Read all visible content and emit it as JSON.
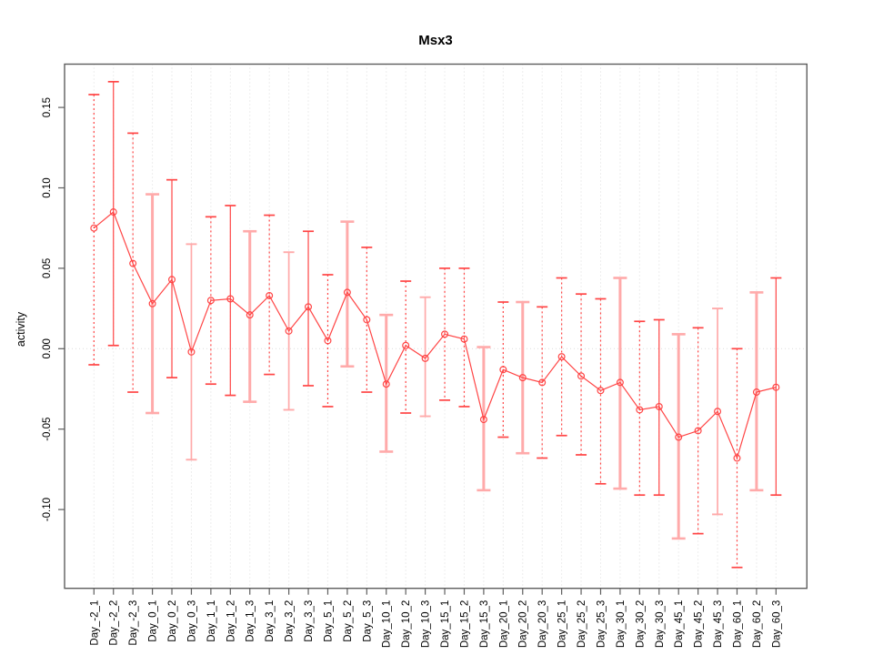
{
  "figure": {
    "title": "Msx3",
    "y_axis_title": "activity"
  },
  "chart_data": {
    "type": "scatter",
    "title": "Msx3",
    "xlabel": "",
    "ylabel": "activity",
    "ylim": [
      -0.148,
      0.177
    ],
    "yticks": [
      0.15,
      0.1,
      0.05,
      0.0,
      -0.05,
      -0.1
    ],
    "ytick_labels": [
      "0.15",
      "0.10",
      "0.05",
      "0.00",
      "-0.05",
      "-0.10"
    ],
    "grid": "vertical dotted gridline at every category; single dotted horizontal line at y=0",
    "legend": "none",
    "marker": "open-circle",
    "error_bars": true,
    "colors": {
      "point": "#FF4545",
      "line": "#FF4545",
      "bar_light": "#FFAAAA",
      "grid": "#DCDCDC",
      "axis": "#5E5E5E",
      "text": "#000000",
      "background": "#FFFFFF"
    },
    "categories": [
      "Day_-2_1",
      "Day_-2_2",
      "Day_-2_3",
      "Day_0_1",
      "Day_0_2",
      "Day_0_3",
      "Day_1_1",
      "Day_1_2",
      "Day_1_3",
      "Day_3_1",
      "Day_3_2",
      "Day_3_3",
      "Day_5_1",
      "Day_5_2",
      "Day_5_3",
      "Day_10_1",
      "Day_10_2",
      "Day_10_3",
      "Day_15_1",
      "Day_15_2",
      "Day_15_3",
      "Day_20_1",
      "Day_20_2",
      "Day_20_3",
      "Day_25_1",
      "Day_25_2",
      "Day_25_3",
      "Day_30_1",
      "Day_30_2",
      "Day_30_3",
      "Day_45_1",
      "Day_45_2",
      "Day_45_3",
      "Day_60_1",
      "Day_60_2",
      "Day_60_3"
    ],
    "series": [
      {
        "name": "mean",
        "values": [
          0.075,
          0.085,
          0.053,
          0.028,
          0.043,
          -0.002,
          0.03,
          0.031,
          0.021,
          0.033,
          0.011,
          0.026,
          0.005,
          0.035,
          0.018,
          -0.022,
          0.002,
          -0.006,
          0.009,
          0.006,
          -0.044,
          -0.013,
          -0.018,
          -0.021,
          -0.005,
          -0.017,
          -0.026,
          -0.021,
          -0.038,
          -0.036,
          -0.055,
          -0.051,
          -0.039,
          -0.068,
          -0.027,
          -0.024
        ]
      },
      {
        "name": "upper",
        "values": [
          0.158,
          0.166,
          0.134,
          0.096,
          0.105,
          0.065,
          0.082,
          0.089,
          0.073,
          0.083,
          0.06,
          0.073,
          0.046,
          0.079,
          0.063,
          0.021,
          0.042,
          0.032,
          0.05,
          0.05,
          0.001,
          0.029,
          0.029,
          0.026,
          0.044,
          0.034,
          0.031,
          0.044,
          0.017,
          0.018,
          0.009,
          0.013,
          0.025,
          0.0,
          0.035,
          0.044
        ]
      },
      {
        "name": "lower",
        "values": [
          -0.01,
          0.002,
          -0.027,
          -0.04,
          -0.018,
          -0.069,
          -0.022,
          -0.029,
          -0.033,
          -0.016,
          -0.038,
          -0.023,
          -0.036,
          -0.011,
          -0.027,
          -0.064,
          -0.04,
          -0.042,
          -0.032,
          -0.036,
          -0.088,
          -0.055,
          -0.065,
          -0.068,
          -0.054,
          -0.066,
          -0.084,
          -0.087,
          -0.091,
          -0.091,
          -0.118,
          -0.115,
          -0.103,
          -0.136,
          -0.088,
          -0.091
        ]
      }
    ],
    "bar_styles": [
      "dashed",
      "solid",
      "dashed",
      "thicklight",
      "solid",
      "light",
      "dashed",
      "solid",
      "thicklight",
      "dashed",
      "light",
      "solid",
      "dashed",
      "thicklight",
      "dashed",
      "thicklight",
      "dashed",
      "light",
      "dashed",
      "dashed",
      "thicklight",
      "dashed",
      "thicklight",
      "dashed",
      "dashed",
      "dashed",
      "dashed",
      "thicklight",
      "dashed",
      "solid",
      "thicklight",
      "dashed",
      "light",
      "dashed",
      "thicklight",
      "solid"
    ]
  }
}
